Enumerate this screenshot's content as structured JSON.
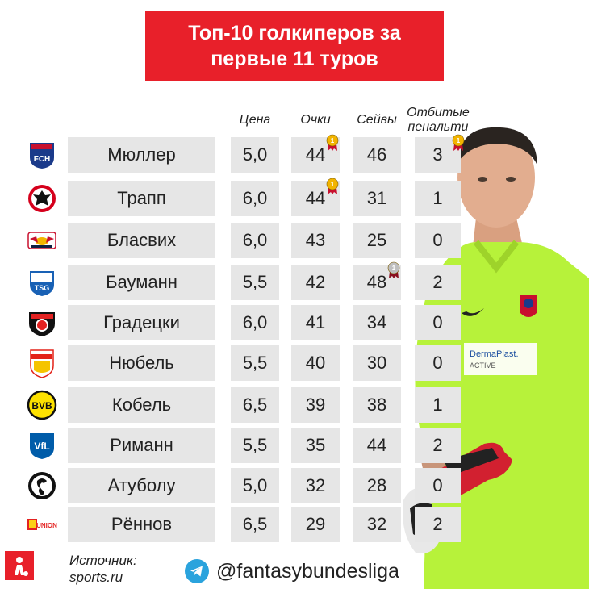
{
  "title": {
    "line1": "Топ-10 голкиперов за",
    "line2": "первые 11 туров"
  },
  "columns": {
    "price": "Цена",
    "points": "Очки",
    "saves": "Сейвы",
    "penalties": "Отбитые пенальти"
  },
  "rows": [
    {
      "name": "Мюллер",
      "club_icon": "heidenheim-logo-icon",
      "price": "5,0",
      "points": "44",
      "saves": "46",
      "penalties": "3",
      "medals": {
        "points": "gold",
        "penalties": "gold"
      }
    },
    {
      "name": "Трапп",
      "club_icon": "eintracht-frankfurt-logo-icon",
      "price": "6,0",
      "points": "44",
      "saves": "31",
      "penalties": "1",
      "medals": {
        "points": "gold"
      }
    },
    {
      "name": "Бласвих",
      "club_icon": "rb-leipzig-logo-icon",
      "price": "6,0",
      "points": "43",
      "saves": "25",
      "penalties": "0"
    },
    {
      "name": "Бауманн",
      "club_icon": "hoffenheim-logo-icon",
      "price": "5,5",
      "points": "42",
      "saves": "48",
      "penalties": "2",
      "medals": {
        "saves": "silver"
      }
    },
    {
      "name": "Градецки",
      "club_icon": "bayer-leverkusen-logo-icon",
      "price": "6,0",
      "points": "41",
      "saves": "34",
      "penalties": "0"
    },
    {
      "name": "Нюбель",
      "club_icon": "vfb-stuttgart-logo-icon",
      "price": "5,5",
      "points": "40",
      "saves": "30",
      "penalties": "0"
    },
    {
      "name": "Кобель",
      "club_icon": "borussia-dortmund-logo-icon",
      "price": "6,5",
      "points": "39",
      "saves": "38",
      "penalties": "1"
    },
    {
      "name": "Риманн",
      "club_icon": "vfl-bochum-logo-icon",
      "price": "5,5",
      "points": "35",
      "saves": "44",
      "penalties": "2"
    },
    {
      "name": "Атуболу",
      "club_icon": "sc-freiburg-logo-icon",
      "price": "5,0",
      "points": "32",
      "saves": "28",
      "penalties": "0"
    },
    {
      "name": "Рённов",
      "club_icon": "union-berlin-logo-icon",
      "price": "6,5",
      "points": "29",
      "saves": "32",
      "penalties": "2"
    }
  ],
  "source": {
    "label": "Источник:",
    "value": "sports.ru"
  },
  "handle": "@fantasybundesliga",
  "colors": {
    "accent": "#e8202a",
    "cell": "#e6e6e6",
    "kit": "#b7f23a"
  }
}
